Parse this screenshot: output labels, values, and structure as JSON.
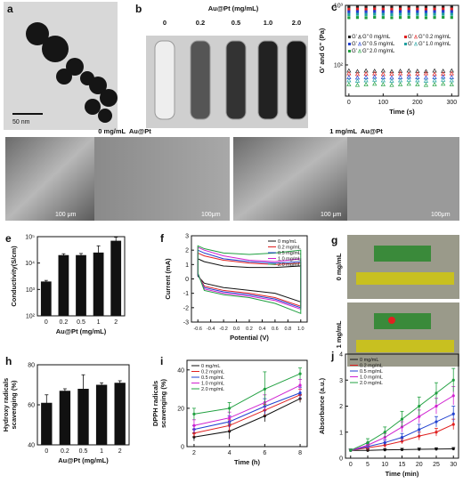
{
  "panel_a": {
    "label": "a",
    "scale_bar": "50 nm"
  },
  "panel_b": {
    "label": "b",
    "title": "Au@Pt (mg/mL)",
    "samples": [
      "0",
      "0.2",
      "0.5",
      "1.0",
      "2.0"
    ]
  },
  "panel_d": {
    "label": "d",
    "captions": [
      "0 mg/mL  Au@Pt",
      "1 mg/mL  Au@Pt"
    ],
    "scale_bars": [
      "100 μm",
      "100μm",
      "100 μm",
      "100μm"
    ]
  },
  "panel_g": {
    "label": "g",
    "conditions": [
      "0 mg/mL",
      "1 mg/mL"
    ]
  },
  "chart_data": [
    {
      "type": "scatter",
      "panel_label": "c",
      "xlabel": "Time (s)",
      "ylabel": "G' and G\" (Pa)",
      "x": [
        0,
        25,
        50,
        75,
        100,
        125,
        150,
        175,
        200,
        225,
        250,
        275,
        300
      ],
      "xlim": [
        -10,
        320
      ],
      "xticks": [
        0,
        100,
        200,
        300
      ],
      "ylim": [
        30,
        1000
      ],
      "log_y": true,
      "yticks": [
        {
          "value": 100,
          "label": "10²"
        },
        {
          "value": 1000,
          "label": "10³"
        }
      ],
      "legend": "center left",
      "legend_labels": [
        "G'",
        "G''"
      ],
      "series": [
        {
          "name": "0 mg/mL",
          "color": "#222222",
          "values": [
            950,
            955,
            950,
            960,
            955,
            950,
            955,
            960,
            955,
            950,
            955,
            960,
            955
          ],
          "loss_values": [
            80,
            78,
            80,
            79,
            80,
            78,
            79,
            80,
            79,
            78,
            80,
            79,
            80
          ]
        },
        {
          "name": "0.2 mg/mL",
          "color": "#e02020",
          "values": [
            860,
            865,
            860,
            870,
            865,
            860,
            865,
            870,
            865,
            860,
            865,
            870,
            865
          ],
          "loss_values": [
            72,
            70,
            71,
            72,
            70,
            71,
            72,
            70,
            71,
            72,
            70,
            71,
            72
          ]
        },
        {
          "name": "0.5 mg/mL",
          "color": "#2040d0",
          "values": [
            780,
            785,
            780,
            790,
            785,
            780,
            785,
            790,
            785,
            780,
            785,
            790,
            785
          ],
          "loss_values": [
            62,
            61,
            62,
            63,
            62,
            61,
            62,
            63,
            62,
            61,
            62,
            63,
            62
          ]
        },
        {
          "name": "1.0 mg/mL",
          "color": "#20a0a0",
          "values": [
            700,
            705,
            700,
            710,
            705,
            700,
            705,
            710,
            705,
            700,
            705,
            710,
            705
          ],
          "loss_values": [
            55,
            54,
            55,
            56,
            55,
            54,
            55,
            56,
            55,
            54,
            55,
            56,
            55
          ]
        },
        {
          "name": "2.0 mg/mL",
          "color": "#20a040",
          "values": [
            620,
            625,
            620,
            630,
            625,
            620,
            625,
            630,
            625,
            620,
            625,
            630,
            625
          ],
          "loss_values": [
            47,
            46,
            47,
            48,
            47,
            46,
            47,
            48,
            47,
            46,
            47,
            48,
            47
          ]
        }
      ]
    },
    {
      "type": "bar",
      "panel_label": "e",
      "xlabel": "Au@Pt (mg/mL)",
      "ylabel": "Conductivity(S/cm)",
      "categories": [
        "0",
        "0.2",
        "0.5",
        "1",
        "2"
      ],
      "color": "#111111",
      "values": [
        2000,
        20000,
        20000,
        25000,
        70000
      ],
      "errors": [
        200,
        2500,
        3000,
        20000,
        25000
      ],
      "ylim": [
        100,
        100000
      ],
      "log_y": true,
      "yticks": [
        {
          "value": 100,
          "label": "10²"
        },
        {
          "value": 1000,
          "label": "10³"
        },
        {
          "value": 10000,
          "label": "10⁴"
        },
        {
          "value": 100000,
          "label": "10⁵"
        }
      ]
    },
    {
      "type": "loop",
      "panel_label": "f",
      "xlabel": "Potential (V)",
      "ylabel": "Current (mA)",
      "xlim": [
        -0.7,
        1.1
      ],
      "xticks": [
        -0.6,
        -0.4,
        -0.2,
        {
          "value": 0,
          "label": "0.0"
        },
        0.2,
        0.4,
        0.6,
        0.8,
        {
          "value": 1,
          "label": "1.0"
        }
      ],
      "ylim": [
        -3,
        3
      ],
      "yticks": [
        -3,
        -2,
        -1,
        0,
        1,
        2,
        3
      ],
      "legend": "upper right",
      "series": [
        {
          "name": "0 mg/mL",
          "color": "#111111",
          "x": [
            -0.6,
            -0.5,
            -0.2,
            0.2,
            0.6,
            1.0,
            1.0,
            0.6,
            0.2,
            -0.2,
            -0.5,
            -0.6
          ],
          "values": [
            1.4,
            1.2,
            0.9,
            0.8,
            0.8,
            0.9,
            -1.6,
            -1.0,
            -0.8,
            -0.6,
            -0.3,
            0.2
          ]
        },
        {
          "name": "0.2 mg/mL",
          "color": "#e02020",
          "x": [
            -0.6,
            -0.5,
            -0.2,
            0.2,
            0.6,
            1.0,
            1.0,
            0.6,
            0.2,
            -0.2,
            -0.5,
            -0.6
          ],
          "values": [
            1.8,
            1.6,
            1.3,
            1.1,
            1.0,
            1.1,
            -1.9,
            -1.3,
            -1.0,
            -0.8,
            -0.5,
            0.3
          ]
        },
        {
          "name": "0.5 mg/mL",
          "color": "#2040d0",
          "x": [
            -0.6,
            -0.5,
            -0.2,
            0.2,
            0.6,
            1.0,
            1.0,
            0.6,
            0.2,
            -0.2,
            -0.5,
            -0.6
          ],
          "values": [
            2.0,
            1.8,
            1.4,
            1.2,
            1.1,
            1.2,
            -2.0,
            -1.4,
            -1.1,
            -0.9,
            -0.6,
            0.3
          ]
        },
        {
          "name": "1.0 mg/mL",
          "color": "#d020d0",
          "x": [
            -0.6,
            -0.5,
            -0.2,
            0.2,
            0.6,
            1.0,
            1.0,
            0.6,
            0.2,
            -0.2,
            -0.5,
            -0.6
          ],
          "values": [
            2.2,
            2.0,
            1.6,
            1.3,
            1.2,
            1.4,
            -2.1,
            -1.5,
            -1.2,
            -1.0,
            -0.7,
            0.4
          ]
        },
        {
          "name": "2.0 mg/mL",
          "color": "#20a040",
          "x": [
            -0.6,
            -0.5,
            -0.2,
            0.2,
            0.6,
            1.0,
            1.0,
            0.6,
            0.2,
            -0.2,
            -0.5,
            -0.6
          ],
          "values": [
            2.3,
            2.1,
            1.8,
            1.7,
            1.8,
            2.0,
            -2.4,
            -1.7,
            -1.3,
            -1.1,
            -0.8,
            0.4
          ]
        }
      ]
    },
    {
      "type": "bar",
      "panel_label": "h",
      "xlabel": "Au@Pt (mg/mL)",
      "ylabel": [
        "Hydroxy radicals",
        "scavenging (%)"
      ],
      "categories": [
        "0",
        "0.2",
        "0.5",
        "1",
        "2"
      ],
      "color": "#111111",
      "values": [
        61,
        67,
        68,
        70,
        71
      ],
      "errors": [
        4,
        1,
        7,
        1,
        1
      ],
      "ylim": [
        40,
        80
      ],
      "yticks": [
        40,
        60,
        80
      ]
    },
    {
      "type": "line",
      "panel_label": "i",
      "xlabel": "Time (h)",
      "ylabel": [
        "DPPH radicals",
        "scavenging (%)"
      ],
      "x": [
        2,
        4,
        6,
        8
      ],
      "xlim": [
        1.6,
        8.4
      ],
      "xticks": [
        2,
        4,
        6,
        8
      ],
      "ylim": [
        0,
        45
      ],
      "yticks": [
        0,
        20,
        40
      ],
      "legend": "upper left",
      "series": [
        {
          "name": "0 mg/mL",
          "color": "#111111",
          "values": [
            5,
            8,
            16,
            25
          ],
          "errors": [
            2,
            4,
            3,
            2
          ]
        },
        {
          "name": "0.2 mg/mL",
          "color": "#e02020",
          "values": [
            7,
            11,
            19,
            27
          ],
          "errors": [
            2,
            3,
            3,
            3
          ]
        },
        {
          "name": "0.5 mg/mL",
          "color": "#2040d0",
          "values": [
            9,
            13,
            21,
            28
          ],
          "errors": [
            2,
            3,
            4,
            3
          ]
        },
        {
          "name": "1.0 mg/mL",
          "color": "#d020d0",
          "values": [
            11,
            15,
            23,
            32
          ],
          "errors": [
            3,
            3,
            4,
            3
          ]
        },
        {
          "name": "2.0 mg/mL",
          "color": "#20a040",
          "values": [
            17,
            20,
            30,
            38
          ],
          "errors": [
            3,
            3,
            9,
            3
          ]
        }
      ]
    },
    {
      "type": "line",
      "panel_label": "j",
      "xlabel": "Time (min)",
      "ylabel": "Absorbance (a.u.)",
      "x": [
        0,
        5,
        10,
        15,
        20,
        25,
        30
      ],
      "xlim": [
        -1.5,
        31.5
      ],
      "xticks": [
        0,
        5,
        10,
        15,
        20,
        25,
        30
      ],
      "ylim": [
        0,
        4
      ],
      "yticks": [
        0,
        1,
        2,
        3,
        4
      ],
      "legend": "upper left",
      "series": [
        {
          "name": "0 mg/mL",
          "color": "#111111",
          "values": [
            0.3,
            0.3,
            0.32,
            0.33,
            0.34,
            0.35,
            0.36
          ],
          "errors": [
            0.05,
            0.05,
            0.05,
            0.05,
            0.05,
            0.05,
            0.05
          ]
        },
        {
          "name": "0.2 mg/mL",
          "color": "#e02020",
          "values": [
            0.3,
            0.4,
            0.5,
            0.65,
            0.85,
            1.0,
            1.3
          ],
          "errors": [
            0.05,
            0.1,
            0.1,
            0.1,
            0.15,
            0.15,
            0.2
          ]
        },
        {
          "name": "0.5 mg/mL",
          "color": "#2040d0",
          "values": [
            0.3,
            0.45,
            0.6,
            0.8,
            1.1,
            1.4,
            1.7
          ],
          "errors": [
            0.05,
            0.1,
            0.1,
            0.15,
            0.2,
            0.2,
            0.3
          ]
        },
        {
          "name": "1.0 mg/mL",
          "color": "#d020d0",
          "values": [
            0.3,
            0.5,
            0.8,
            1.2,
            1.6,
            2.0,
            2.4
          ],
          "errors": [
            0.05,
            0.1,
            0.15,
            0.2,
            0.25,
            0.3,
            0.35
          ]
        },
        {
          "name": "2.0 mg/mL",
          "color": "#20a040",
          "values": [
            0.3,
            0.6,
            1.0,
            1.5,
            2.0,
            2.5,
            3.0
          ],
          "errors": [
            0.05,
            0.15,
            0.2,
            0.3,
            0.35,
            0.4,
            0.45
          ]
        }
      ]
    }
  ]
}
